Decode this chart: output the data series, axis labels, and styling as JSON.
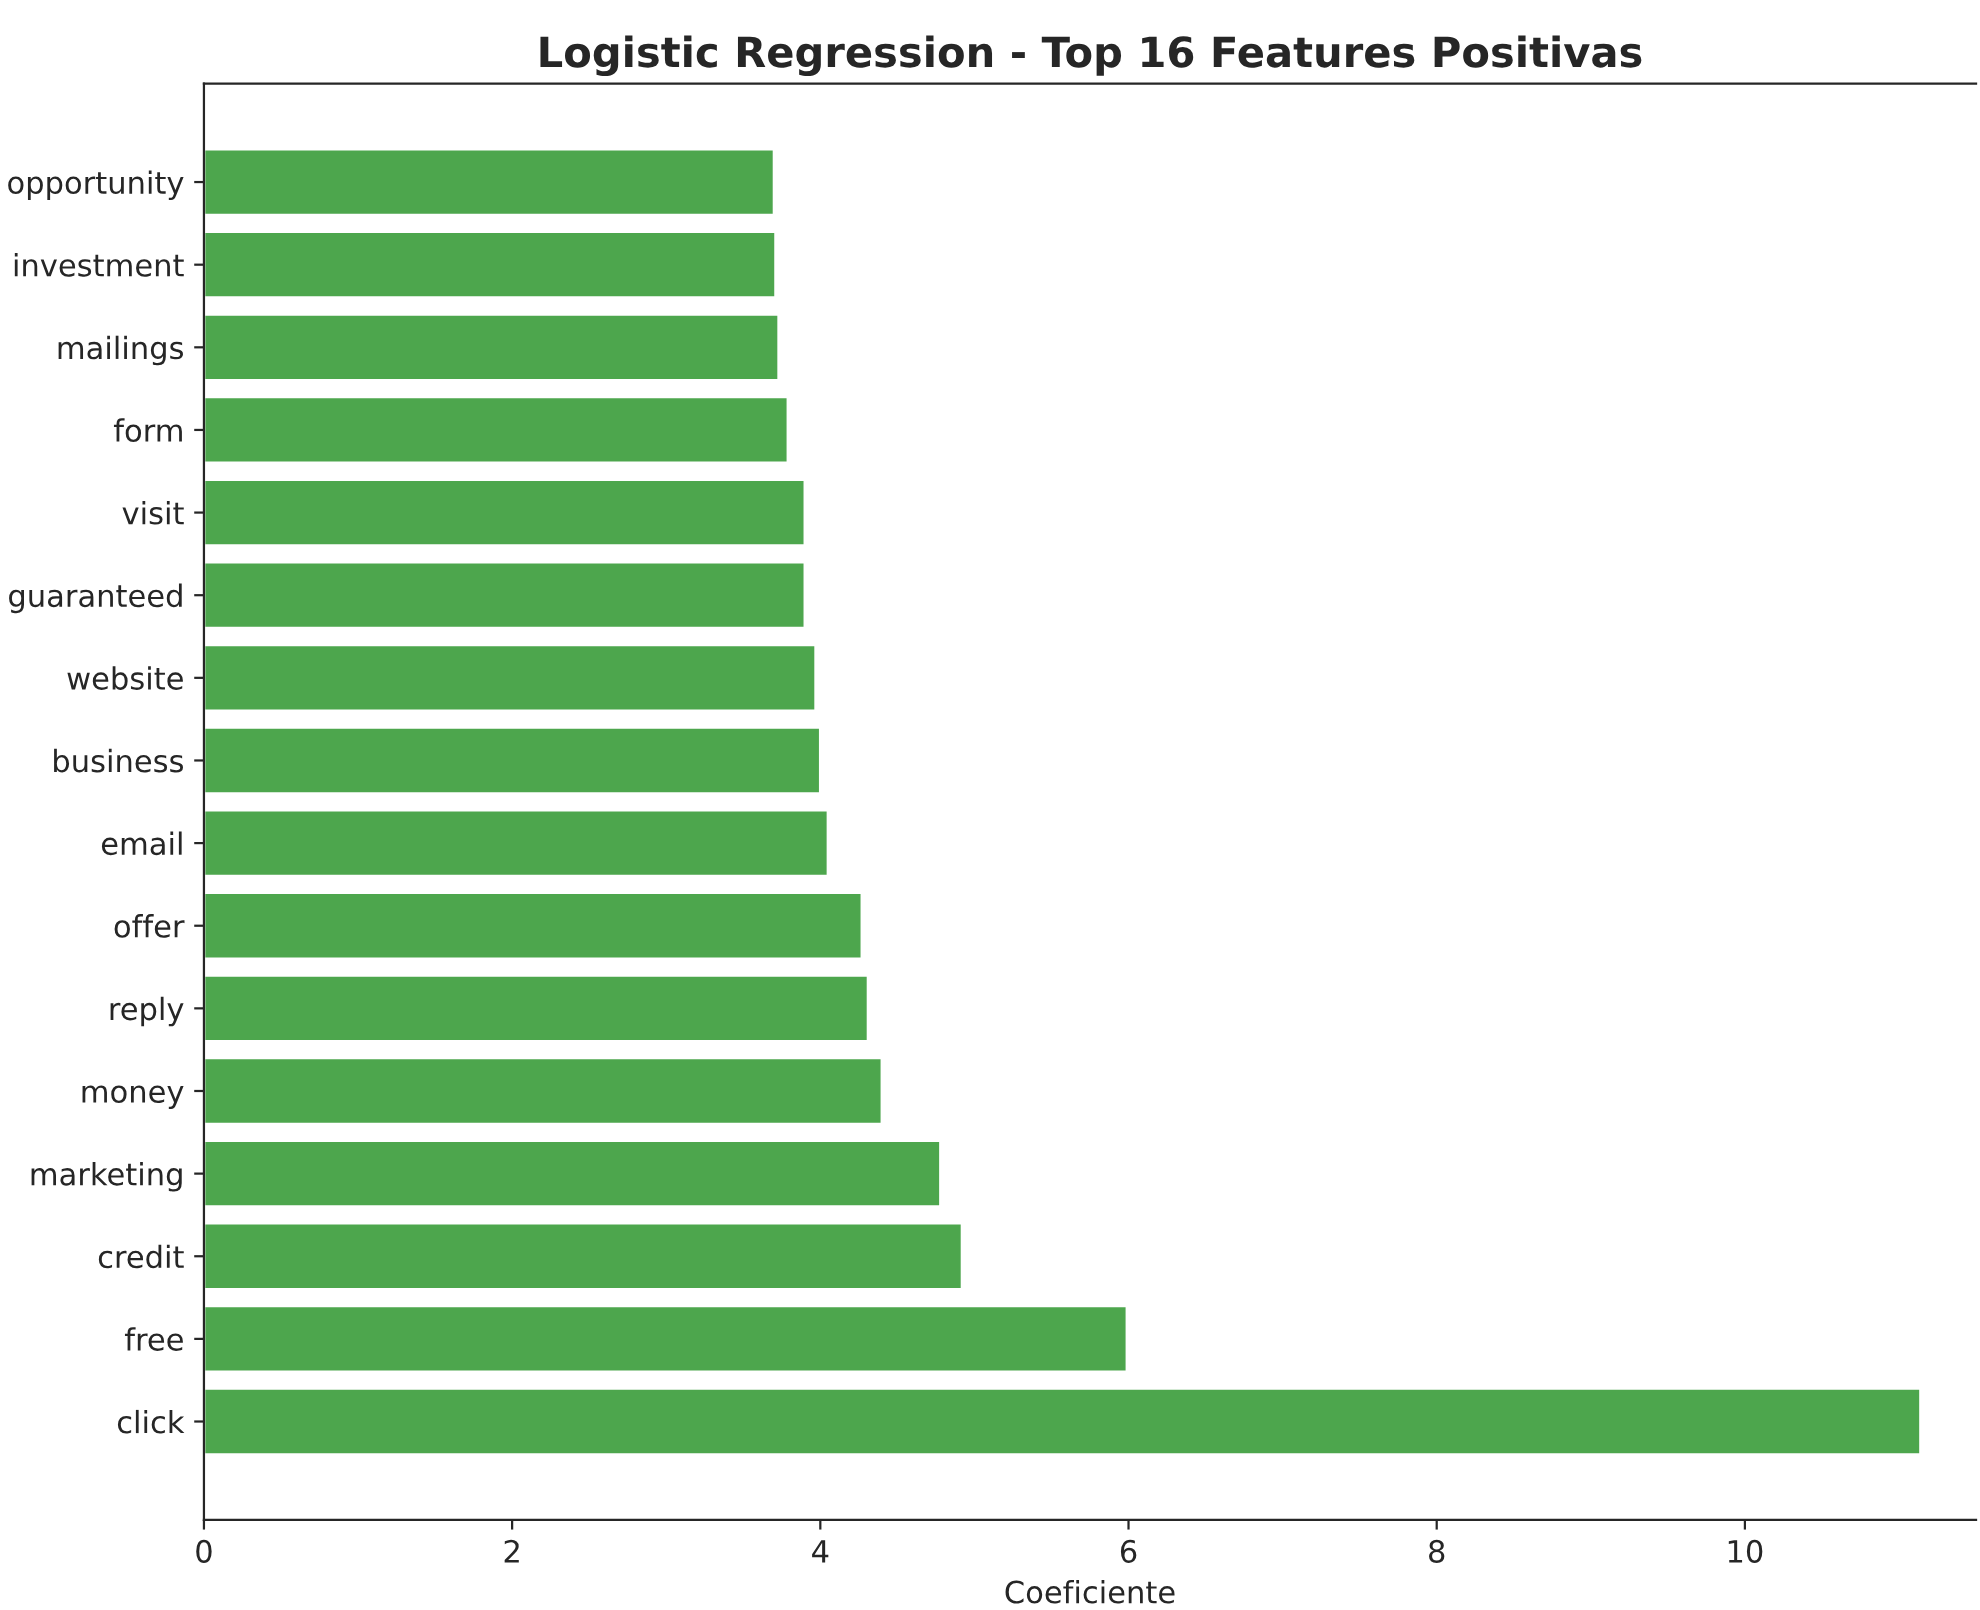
{
  "chart_data": {
    "type": "bar",
    "orientation": "horizontal",
    "title": "Logistic Regression - Top 16 Features Positivas",
    "xlabel": "Coeficiente",
    "categories": [
      "opportunity",
      "investment",
      "mailings",
      "form",
      "visit",
      "guaranteed",
      "website",
      "business",
      "email",
      "offer",
      "reply",
      "money",
      "marketing",
      "credit",
      "free",
      "click"
    ],
    "values": [
      3.7,
      3.71,
      3.73,
      3.79,
      3.9,
      3.9,
      3.97,
      4.0,
      4.05,
      4.27,
      4.31,
      4.4,
      4.78,
      4.92,
      5.99,
      11.14
    ],
    "color": "#4da64d",
    "xlim": [
      0,
      11.5
    ],
    "xticks": [
      0,
      2,
      4,
      6,
      8,
      10
    ],
    "grid": false
  }
}
